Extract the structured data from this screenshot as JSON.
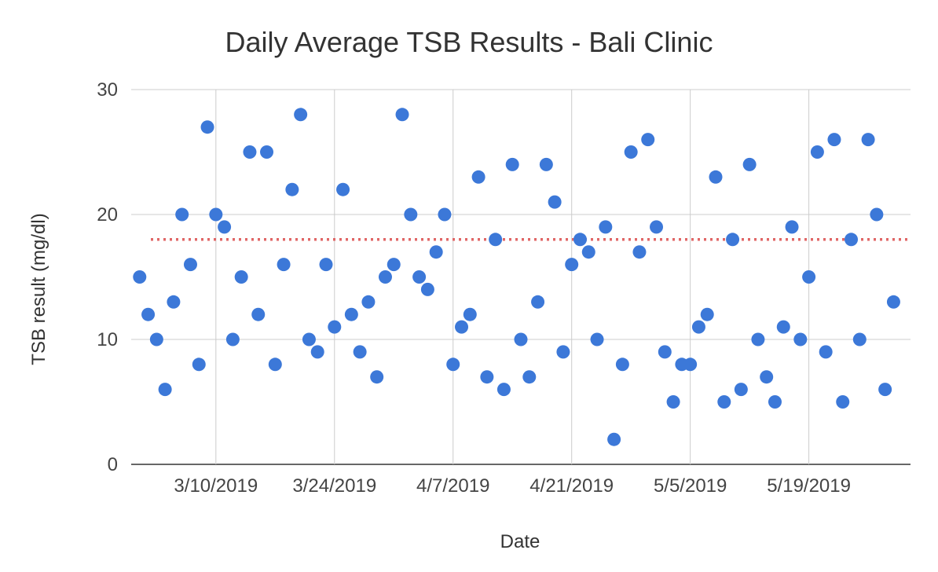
{
  "chart_data": {
    "type": "scatter",
    "title": "Daily Average TSB Results - Bali Clinic",
    "xlabel": "Date",
    "ylabel": "TSB result (mg/dl)",
    "x_axis_type": "date",
    "xlim": [
      "2019-02-28",
      "2019-05-31"
    ],
    "ylim": [
      0,
      30
    ],
    "y_ticks": [
      0,
      10,
      20,
      30
    ],
    "x_ticks": [
      {
        "date": "2019-03-10",
        "label": "3/10/2019"
      },
      {
        "date": "2019-03-24",
        "label": "3/24/2019"
      },
      {
        "date": "2019-04-07",
        "label": "4/7/2019"
      },
      {
        "date": "2019-04-21",
        "label": "4/21/2019"
      },
      {
        "date": "2019-05-05",
        "label": "5/5/2019"
      },
      {
        "date": "2019-05-19",
        "label": "5/19/2019"
      }
    ],
    "grid": true,
    "legend": "none",
    "reference_line": {
      "y": 18,
      "style": "dotted",
      "color": "#e06666"
    },
    "point_color": "#3c78d8",
    "series": [
      {
        "points": [
          {
            "x": "2019-03-01",
            "y": 15
          },
          {
            "x": "2019-03-02",
            "y": 12
          },
          {
            "x": "2019-03-03",
            "y": 10
          },
          {
            "x": "2019-03-04",
            "y": 6
          },
          {
            "x": "2019-03-05",
            "y": 13
          },
          {
            "x": "2019-03-06",
            "y": 20
          },
          {
            "x": "2019-03-07",
            "y": 16
          },
          {
            "x": "2019-03-08",
            "y": 8
          },
          {
            "x": "2019-03-09",
            "y": 27
          },
          {
            "x": "2019-03-10",
            "y": 20
          },
          {
            "x": "2019-03-11",
            "y": 19
          },
          {
            "x": "2019-03-12",
            "y": 10
          },
          {
            "x": "2019-03-13",
            "y": 15
          },
          {
            "x": "2019-03-14",
            "y": 25
          },
          {
            "x": "2019-03-15",
            "y": 12
          },
          {
            "x": "2019-03-16",
            "y": 25
          },
          {
            "x": "2019-03-17",
            "y": 8
          },
          {
            "x": "2019-03-18",
            "y": 16
          },
          {
            "x": "2019-03-19",
            "y": 22
          },
          {
            "x": "2019-03-20",
            "y": 28
          },
          {
            "x": "2019-03-21",
            "y": 10
          },
          {
            "x": "2019-03-22",
            "y": 9
          },
          {
            "x": "2019-03-23",
            "y": 16
          },
          {
            "x": "2019-03-24",
            "y": 11
          },
          {
            "x": "2019-03-25",
            "y": 22
          },
          {
            "x": "2019-03-26",
            "y": 12
          },
          {
            "x": "2019-03-27",
            "y": 9
          },
          {
            "x": "2019-03-28",
            "y": 13
          },
          {
            "x": "2019-03-29",
            "y": 7
          },
          {
            "x": "2019-03-30",
            "y": 15
          },
          {
            "x": "2019-03-31",
            "y": 16
          },
          {
            "x": "2019-04-01",
            "y": 28
          },
          {
            "x": "2019-04-02",
            "y": 20
          },
          {
            "x": "2019-04-03",
            "y": 15
          },
          {
            "x": "2019-04-04",
            "y": 14
          },
          {
            "x": "2019-04-05",
            "y": 17
          },
          {
            "x": "2019-04-06",
            "y": 20
          },
          {
            "x": "2019-04-07",
            "y": 8
          },
          {
            "x": "2019-04-08",
            "y": 11
          },
          {
            "x": "2019-04-09",
            "y": 12
          },
          {
            "x": "2019-04-10",
            "y": 23
          },
          {
            "x": "2019-04-11",
            "y": 7
          },
          {
            "x": "2019-04-12",
            "y": 18
          },
          {
            "x": "2019-04-13",
            "y": 6
          },
          {
            "x": "2019-04-14",
            "y": 24
          },
          {
            "x": "2019-04-15",
            "y": 10
          },
          {
            "x": "2019-04-16",
            "y": 7
          },
          {
            "x": "2019-04-17",
            "y": 13
          },
          {
            "x": "2019-04-18",
            "y": 24
          },
          {
            "x": "2019-04-19",
            "y": 21
          },
          {
            "x": "2019-04-20",
            "y": 9
          },
          {
            "x": "2019-04-21",
            "y": 16
          },
          {
            "x": "2019-04-22",
            "y": 18
          },
          {
            "x": "2019-04-23",
            "y": 17
          },
          {
            "x": "2019-04-24",
            "y": 10
          },
          {
            "x": "2019-04-25",
            "y": 19
          },
          {
            "x": "2019-04-26",
            "y": 2
          },
          {
            "x": "2019-04-27",
            "y": 8
          },
          {
            "x": "2019-04-28",
            "y": 25
          },
          {
            "x": "2019-04-29",
            "y": 17
          },
          {
            "x": "2019-04-30",
            "y": 26
          },
          {
            "x": "2019-05-01",
            "y": 19
          },
          {
            "x": "2019-05-02",
            "y": 9
          },
          {
            "x": "2019-05-03",
            "y": 5
          },
          {
            "x": "2019-05-04",
            "y": 8
          },
          {
            "x": "2019-05-05",
            "y": 8
          },
          {
            "x": "2019-05-06",
            "y": 11
          },
          {
            "x": "2019-05-07",
            "y": 12
          },
          {
            "x": "2019-05-08",
            "y": 23
          },
          {
            "x": "2019-05-09",
            "y": 5
          },
          {
            "x": "2019-05-10",
            "y": 18
          },
          {
            "x": "2019-05-11",
            "y": 6
          },
          {
            "x": "2019-05-12",
            "y": 24
          },
          {
            "x": "2019-05-13",
            "y": 10
          },
          {
            "x": "2019-05-14",
            "y": 7
          },
          {
            "x": "2019-05-15",
            "y": 5
          },
          {
            "x": "2019-05-16",
            "y": 11
          },
          {
            "x": "2019-05-17",
            "y": 19
          },
          {
            "x": "2019-05-18",
            "y": 10
          },
          {
            "x": "2019-05-19",
            "y": 15
          },
          {
            "x": "2019-05-20",
            "y": 25
          },
          {
            "x": "2019-05-21",
            "y": 9
          },
          {
            "x": "2019-05-22",
            "y": 26
          },
          {
            "x": "2019-05-23",
            "y": 5
          },
          {
            "x": "2019-05-24",
            "y": 18
          },
          {
            "x": "2019-05-25",
            "y": 10
          },
          {
            "x": "2019-05-26",
            "y": 26
          },
          {
            "x": "2019-05-27",
            "y": 20
          },
          {
            "x": "2019-05-28",
            "y": 6
          },
          {
            "x": "2019-05-29",
            "y": 13
          }
        ]
      }
    ]
  }
}
